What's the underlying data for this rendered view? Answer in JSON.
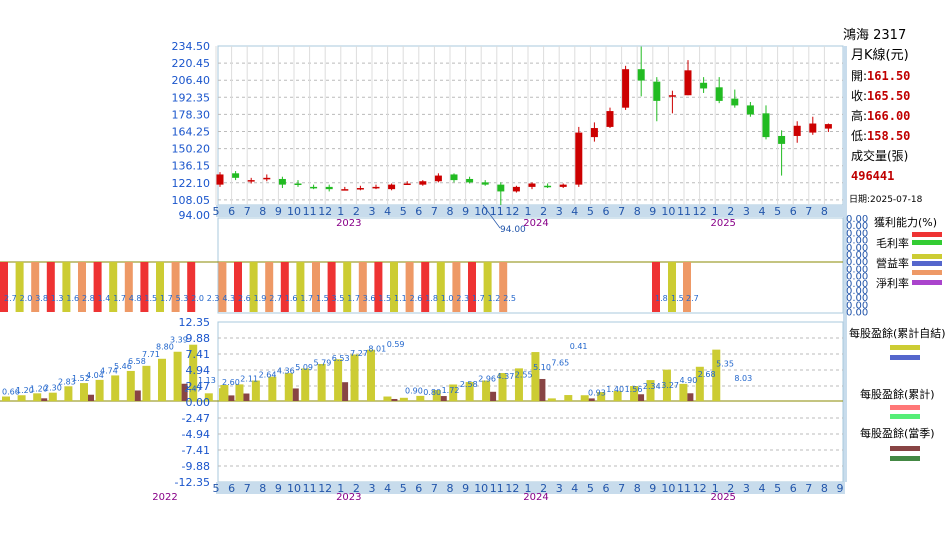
{
  "header": {
    "stock_title": "鴻海 2317",
    "period_label": "月K線(元)",
    "open_label": "開:",
    "open_value": "161.50",
    "close_label": "收:",
    "close_value": "165.50",
    "high_label": "高:",
    "high_value": "166.00",
    "low_label": "低:",
    "low_value": "158.50",
    "volume_label": "成交量(張)",
    "volume_value": "496441",
    "date_label": "日期:2025-07-18"
  },
  "legends": {
    "profit_title": "獲利能力(%)",
    "gross_margin": "毛利率",
    "operating_margin": "營益率",
    "profit_margin": "利益率",
    "net_margin": "淨利率",
    "eps_cum_self": "每股盈餘(累計自結)",
    "eps_cum": "每股盈餘(累計)",
    "eps_q": "每股盈餘(當季)"
  },
  "colors": {
    "up": "#cc0000",
    "down": "#22bb22",
    "grid": "#bbbbbb",
    "axis_text": "#1a55cc",
    "border": "#a8c8dc",
    "gross": "#ee3333",
    "operating": "#33cc33",
    "profit": "#cccc33",
    "profit2": "#5566cc",
    "net": "#ee9966",
    "net2": "#aa44cc",
    "eps_bar": "#cccc33",
    "eps_bar2": "#5566cc",
    "eps_q": "#884444",
    "eps_q2": "#448844",
    "eps_cum_a": "#ff7777",
    "eps_cum_b": "#55ee77",
    "axis_year": "#880088"
  },
  "chart_data": [
    {
      "type": "candlestick",
      "title": "鴻海 2317 月K線(元)",
      "y_ticks": [
        "234.50",
        "220.45",
        "206.40",
        "192.35",
        "178.30",
        "164.25",
        "150.20",
        "136.15",
        "122.10",
        "108.05",
        "94.00"
      ],
      "ylim": [
        94.0,
        234.5
      ],
      "months": [
        "5",
        "6",
        "7",
        "8",
        "9",
        "10",
        "11",
        "12",
        "1",
        "2",
        "3",
        "4",
        "5",
        "6",
        "7",
        "8",
        "9",
        "10",
        "11",
        "12",
        "1",
        "2",
        "3",
        "4",
        "5",
        "6",
        "7",
        "8",
        "9",
        "10",
        "11",
        "12",
        "1",
        "2",
        "3",
        "4",
        "5",
        "6",
        "7",
        "8"
      ],
      "years": [
        {
          "label": "2023",
          "index": 8
        },
        {
          "label": "2024",
          "index": 20
        },
        {
          "label": "2025",
          "index": 32
        }
      ],
      "min_annotation": "94.00",
      "candles": [
        {
          "m": "2022-05",
          "o": 112,
          "c": 121,
          "h": 123,
          "l": 110
        },
        {
          "m": "2022-06",
          "o": 122,
          "c": 118,
          "h": 124,
          "l": 116
        },
        {
          "m": "2022-07",
          "o": 115,
          "c": 116,
          "h": 118,
          "l": 113
        },
        {
          "m": "2022-08",
          "o": 117,
          "c": 118,
          "h": 121,
          "l": 115
        },
        {
          "m": "2022-09",
          "o": 117,
          "c": 112,
          "h": 119,
          "l": 109
        },
        {
          "m": "2022-10",
          "o": 113,
          "c": 112,
          "h": 116,
          "l": 110
        },
        {
          "m": "2022-11",
          "o": 110,
          "c": 109,
          "h": 112,
          "l": 108
        },
        {
          "m": "2022-12",
          "o": 110,
          "c": 108,
          "h": 112,
          "l": 106
        },
        {
          "m": "2023-01",
          "o": 108,
          "c": 108,
          "h": 110,
          "l": 107
        },
        {
          "m": "2023-02",
          "o": 108,
          "c": 109,
          "h": 111,
          "l": 107
        },
        {
          "m": "2023-03",
          "o": 109,
          "c": 110,
          "h": 112,
          "l": 108
        },
        {
          "m": "2023-04",
          "o": 108,
          "c": 112,
          "h": 113,
          "l": 107
        },
        {
          "m": "2023-05",
          "o": 113,
          "c": 113,
          "h": 115,
          "l": 112
        },
        {
          "m": "2023-06",
          "o": 112,
          "c": 115,
          "h": 116,
          "l": 111
        },
        {
          "m": "2023-07",
          "o": 115,
          "c": 120,
          "h": 122,
          "l": 114
        },
        {
          "m": "2023-08",
          "o": 121,
          "c": 116,
          "h": 122,
          "l": 114
        },
        {
          "m": "2023-09",
          "o": 117,
          "c": 114,
          "h": 119,
          "l": 113
        },
        {
          "m": "2023-10",
          "o": 114,
          "c": 112,
          "h": 116,
          "l": 111
        },
        {
          "m": "2023-11",
          "o": 112,
          "c": 106,
          "h": 114,
          "l": 94
        },
        {
          "m": "2023-12",
          "o": 106,
          "c": 110,
          "h": 111,
          "l": 105
        },
        {
          "m": "2024-01",
          "o": 110,
          "c": 113,
          "h": 114,
          "l": 108
        },
        {
          "m": "2024-02",
          "o": 111,
          "c": 110,
          "h": 113,
          "l": 109
        },
        {
          "m": "2024-03",
          "o": 110,
          "c": 112,
          "h": 113,
          "l": 109
        },
        {
          "m": "2024-04",
          "o": 112,
          "c": 158,
          "h": 163,
          "l": 110
        },
        {
          "m": "2024-05",
          "o": 154,
          "c": 162,
          "h": 167,
          "l": 150
        },
        {
          "m": "2024-06",
          "o": 163,
          "c": 177,
          "h": 180,
          "l": 162
        },
        {
          "m": "2024-07",
          "o": 180,
          "c": 214,
          "h": 217,
          "l": 178
        },
        {
          "m": "2024-08",
          "o": 214,
          "c": 204,
          "h": 234,
          "l": 190
        },
        {
          "m": "2024-09",
          "o": 203,
          "c": 186,
          "h": 207,
          "l": 168
        },
        {
          "m": "2024-10",
          "o": 190,
          "c": 191,
          "h": 195,
          "l": 175
        },
        {
          "m": "2024-11",
          "o": 191,
          "c": 213,
          "h": 222,
          "l": 191
        },
        {
          "m": "2024-12",
          "o": 202,
          "c": 197,
          "h": 207,
          "l": 193
        },
        {
          "m": "2025-01",
          "o": 198,
          "c": 186,
          "h": 207,
          "l": 184
        },
        {
          "m": "2025-02",
          "o": 188,
          "c": 182,
          "h": 196,
          "l": 180
        },
        {
          "m": "2025-03",
          "o": 182,
          "c": 174,
          "h": 185,
          "l": 172
        },
        {
          "m": "2025-04",
          "o": 175,
          "c": 154,
          "h": 182,
          "l": 152
        },
        {
          "m": "2025-05",
          "o": 155,
          "c": 148,
          "h": 160,
          "l": 120
        },
        {
          "m": "2025-06",
          "o": 155,
          "c": 164,
          "h": 168,
          "l": 149
        },
        {
          "m": "2025-07",
          "o": 158,
          "c": 166,
          "h": 172,
          "l": 156
        },
        {
          "m": "2025-08",
          "o": 161.5,
          "c": 165.5,
          "h": 166,
          "l": 158.5
        }
      ]
    },
    {
      "type": "bar",
      "title": "獲利能力(%)",
      "y_ticks": [
        "0.00",
        "0.00",
        "0.00",
        "0.00",
        "0.00",
        "0.00",
        "0.00",
        "0.00",
        "0.00",
        "0.00",
        "0.00",
        "0.00",
        "0.00",
        "0.00"
      ],
      "series_names": [
        "毛利率",
        "營益率",
        "利益率",
        "淨利率"
      ],
      "bar_labels": [
        "2.7",
        "2.0",
        "3.8",
        "1.3",
        "1.6",
        "2.8",
        "1.4",
        "1.7",
        "4.8",
        "1.5",
        "1.7",
        "5.3",
        "2.0",
        "2.3",
        "4.3",
        "2.6",
        "1.9",
        "2.7",
        "1.6",
        "1.7",
        "1.5",
        "3.5",
        "1.7",
        "3.6",
        "1.5",
        "1.1",
        "2.6",
        "1.8",
        "1.0",
        "2.3",
        "1.7",
        "1.2",
        "2.5",
        "1.8",
        "1.5",
        "2.7"
      ]
    },
    {
      "type": "bar",
      "title": "每股盈餘",
      "y_ticks": [
        "12.35",
        "9.88",
        "7.41",
        "4.94",
        "2.47",
        "0.00",
        "-2.47",
        "-4.94",
        "-7.41",
        "-9.88",
        "-12.35"
      ],
      "ylim": [
        -12.35,
        12.35
      ],
      "months": [
        "5",
        "6",
        "7",
        "8",
        "9",
        "10",
        "11",
        "12",
        "1",
        "2",
        "3",
        "4",
        "5",
        "6",
        "7",
        "8",
        "9",
        "10",
        "11",
        "12",
        "1",
        "2",
        "3",
        "4",
        "5",
        "6",
        "7",
        "8",
        "9",
        "10",
        "11",
        "12",
        "1",
        "2",
        "3",
        "4",
        "5",
        "6",
        "7",
        "8",
        "9"
      ],
      "years": [
        {
          "label": "2022",
          "offset": -4
        },
        {
          "label": "2023",
          "index": 8
        },
        {
          "label": "2024",
          "index": 20
        },
        {
          "label": "2025",
          "index": 32
        }
      ],
      "cum_values": [
        2.0,
        2.6,
        3.2,
        3.8,
        4.36,
        5.09,
        5.79,
        6.53,
        7.27,
        8.01,
        0.7,
        0.5,
        0.8,
        1.72,
        2.58,
        2.96,
        3.2,
        4.37,
        5.1,
        7.65,
        0.41,
        0.93,
        0.9,
        1.4,
        1.56,
        2.34,
        3.27,
        4.9,
        2.68,
        5.35,
        8.03
      ],
      "cum_labels": [
        "2.60",
        "2.11",
        "2.64",
        "4.36",
        "5.09",
        "5.79",
        "6.53",
        "7.27",
        "8.01",
        "0.59",
        "0.90",
        "0.80",
        "1.72",
        "2.58",
        "2.96",
        "4.37",
        "2.55",
        "5.10",
        "7.65",
        "0.41",
        "0.93",
        "1.40",
        "1.56",
        "2.34",
        "3.27",
        "4.90",
        "2.68",
        "5.35",
        "8.03"
      ],
      "left_labels": [
        "0.66",
        "1.20",
        "1.20",
        "2.30",
        "2.83",
        "1.52",
        "4.04",
        "4.74",
        "5.46",
        "6.58",
        "7.71",
        "8.80",
        "3.39",
        "2.47",
        "1.13"
      ]
    }
  ]
}
